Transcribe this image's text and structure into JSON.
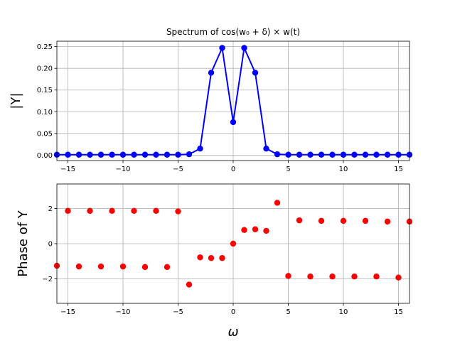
{
  "chart_data": [
    {
      "type": "line",
      "title": "Spectrum of cos(w₀ + δ) × w(t)",
      "xlabel": "",
      "ylabel": "|Y|",
      "xlim": [
        -16,
        16
      ],
      "ylim": [
        -0.0125,
        0.2625
      ],
      "xticks": [
        -15,
        -10,
        -5,
        0,
        5,
        10,
        15
      ],
      "xtick_labels": [
        "−15",
        "−10",
        "−5",
        "0",
        "5",
        "10",
        "15"
      ],
      "yticks": [
        0.0,
        0.05,
        0.1,
        0.15,
        0.2,
        0.25
      ],
      "ytick_labels": [
        "0.00",
        "0.05",
        "0.10",
        "0.15",
        "0.20",
        "0.25"
      ],
      "grid": true,
      "series": [
        {
          "color": "#0000ff",
          "marker": "circle",
          "x": [
            -16,
            -15,
            -14,
            -13,
            -12,
            -11,
            -10,
            -9,
            -8,
            -7,
            -6,
            -5,
            -4,
            -3,
            -2,
            -1,
            0,
            1,
            2,
            3,
            4,
            5,
            6,
            7,
            8,
            9,
            10,
            11,
            12,
            13,
            14,
            15,
            16
          ],
          "values": [
            0.001,
            0.001,
            0.001,
            0.001,
            0.001,
            0.001,
            0.001,
            0.001,
            0.001,
            0.001,
            0.001,
            0.001,
            0.002,
            0.015,
            0.19,
            0.247,
            0.076,
            0.247,
            0.19,
            0.015,
            0.002,
            0.001,
            0.001,
            0.001,
            0.001,
            0.001,
            0.001,
            0.001,
            0.001,
            0.001,
            0.001,
            0.001,
            0.001
          ]
        }
      ]
    },
    {
      "type": "scatter",
      "title": "",
      "xlabel": "ω",
      "ylabel": "Phase of Y",
      "xlim": [
        -16,
        16
      ],
      "ylim": [
        -3.4,
        3.4
      ],
      "xticks": [
        -15,
        -10,
        -5,
        0,
        5,
        10,
        15
      ],
      "xtick_labels": [
        "−15",
        "−10",
        "−5",
        "0",
        "5",
        "10",
        "15"
      ],
      "yticks": [
        -2,
        0,
        2
      ],
      "ytick_labels": [
        "−2",
        "0",
        "2"
      ],
      "grid": true,
      "series": [
        {
          "color": "#ff0000",
          "marker": "circle",
          "x": [
            -16,
            -15,
            -14,
            -13,
            -12,
            -11,
            -10,
            -9,
            -8,
            -7,
            -6,
            -5,
            -4,
            -3,
            -2,
            -1,
            0,
            1,
            2,
            3,
            4,
            5,
            6,
            7,
            8,
            9,
            10,
            11,
            12,
            13,
            14,
            15,
            16
          ],
          "values": [
            -1.26,
            1.87,
            -1.3,
            1.87,
            -1.3,
            1.87,
            -1.3,
            1.87,
            -1.33,
            1.87,
            -1.33,
            1.84,
            -2.33,
            -0.78,
            -0.82,
            -0.82,
            0.0,
            0.78,
            0.82,
            0.73,
            2.33,
            -1.84,
            1.33,
            -1.87,
            1.3,
            -1.87,
            1.3,
            -1.87,
            1.3,
            -1.87,
            1.26,
            -1.93,
            1.26
          ]
        }
      ]
    }
  ]
}
